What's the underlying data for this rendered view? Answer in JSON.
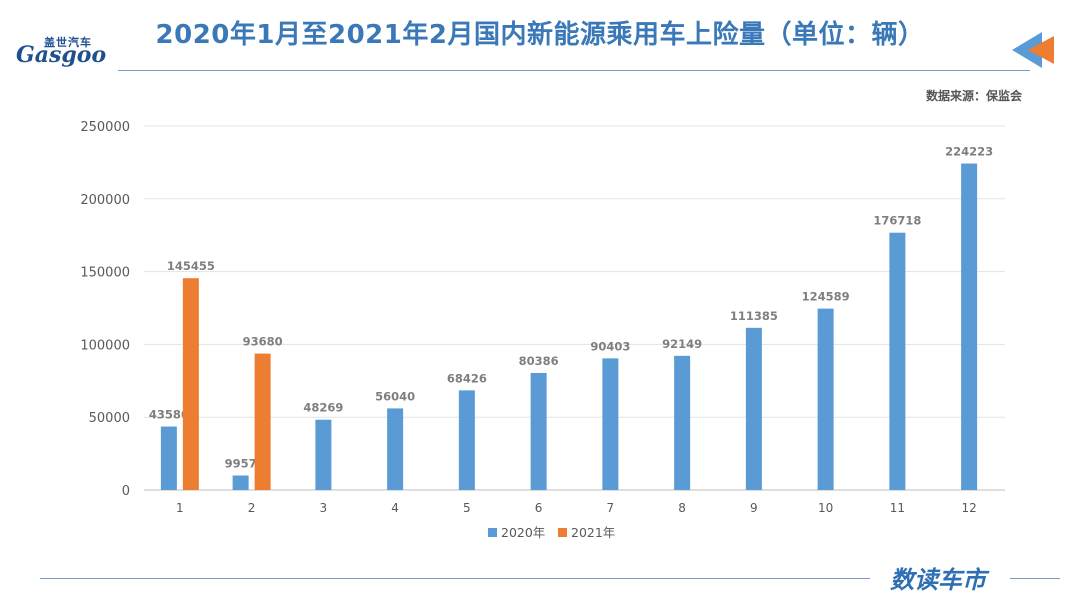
{
  "header": {
    "title": "2020年1月至2021年2月国内新能源乘用车上险量（单位：辆）",
    "logo_cn": "盖世汽车",
    "logo_en": "Gasgoo",
    "source": "数据来源：保监会"
  },
  "footer": {
    "brand": "数读车市"
  },
  "colors": {
    "series_2020": "#5b9bd5",
    "series_2021": "#ed7d31",
    "title": "#3a78b8",
    "accent_orange": "#ed7d31",
    "accent_blue": "#5b9bd5"
  },
  "chart_data": {
    "type": "bar",
    "categories": [
      "1",
      "2",
      "3",
      "4",
      "5",
      "6",
      "7",
      "8",
      "9",
      "10",
      "11",
      "12"
    ],
    "series": [
      {
        "name": "2020年",
        "values": [
          43586,
          9957,
          48269,
          56040,
          68426,
          80386,
          90403,
          92149,
          111385,
          124589,
          176718,
          224223
        ]
      },
      {
        "name": "2021年",
        "values": [
          145455,
          93680,
          null,
          null,
          null,
          null,
          null,
          null,
          null,
          null,
          null,
          null
        ]
      }
    ],
    "ylim": [
      0,
      250000
    ],
    "yticks": [
      "0",
      "50000",
      "100000",
      "150000",
      "200000",
      "250000"
    ],
    "title": "2020年1月至2021年2月国内新能源乘用车上险量（单位：辆）",
    "xlabel": "",
    "ylabel": "",
    "grid": true,
    "legend_position": "bottom"
  }
}
